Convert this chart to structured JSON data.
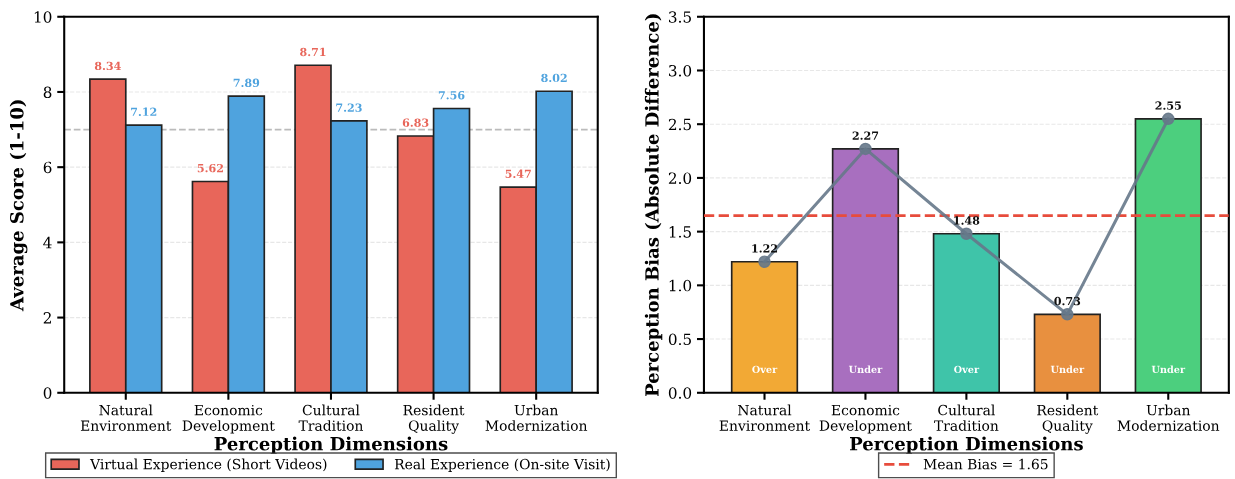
{
  "chart_data": [
    {
      "type": "bar",
      "categories": [
        "Natural\nEnvironment",
        "Economic\nDevelopment",
        "Cultural\nTradition",
        "Resident\nQuality",
        "Urban\nModernization"
      ],
      "xlabel": "Perception Dimensions",
      "ylabel": "Average Score (1-10)",
      "ylim": [
        0,
        10
      ],
      "yticks": [
        0,
        2,
        4,
        6,
        8,
        10
      ],
      "grid": "y",
      "legend": "bottom",
      "data_labels": true,
      "series": [
        {
          "name": "Virtual Experience (Short Videos)",
          "color": "#e8665a",
          "values": [
            8.34,
            5.62,
            8.71,
            6.83,
            5.47
          ]
        },
        {
          "name": "Real Experience (On-site Visit)",
          "color": "#4fa3de",
          "values": [
            7.12,
            7.89,
            7.23,
            7.56,
            8.02
          ]
        }
      ],
      "ref_lines": [
        {
          "axis": "y",
          "value": 7,
          "color": "#bbbbbb",
          "line_style": "dashed"
        }
      ]
    },
    {
      "type": "bar",
      "categories": [
        "Natural\nEnvironment",
        "Economic\nDevelopment",
        "Cultural\nTradition",
        "Resident\nQuality",
        "Urban\nModernization"
      ],
      "xlabel": "Perception Dimensions",
      "ylabel": "Perception Bias (Absolute Difference)",
      "ylim": [
        0,
        3.5
      ],
      "yticks": [
        {
          "value": 0,
          "label": "0.0"
        },
        {
          "value": 0.5,
          "label": "0.5"
        },
        {
          "value": 1,
          "label": "1.0"
        },
        {
          "value": 1.5,
          "label": "1.5"
        },
        {
          "value": 2,
          "label": "2.0"
        },
        {
          "value": 2.5,
          "label": "2.5"
        },
        {
          "value": 3,
          "label": "3.0"
        },
        {
          "value": 3.5,
          "label": "3.5"
        }
      ],
      "grid": "y",
      "legend": "bottom",
      "series": [
        {
          "type": "bar",
          "colors": [
            "#f2a935",
            "#a86fbf",
            "#3fc4a9",
            "#e8903f",
            "#4ccf7e"
          ],
          "values": [
            1.22,
            2.27,
            1.48,
            0.73,
            2.55
          ],
          "data_labels": true
        },
        {
          "type": "line",
          "color": "#66788a",
          "marker": "circle",
          "line_style": "solid",
          "values": [
            1.22,
            2.27,
            1.48,
            0.73,
            2.55
          ]
        }
      ],
      "ref_lines": [
        {
          "axis": "y",
          "value": 1.65,
          "label": "Mean Bias = 1.65",
          "color": "#e74c3c",
          "line_style": "dashed"
        }
      ],
      "annotations": [
        "Over",
        "Under",
        "Over",
        "Under",
        "Under"
      ]
    }
  ]
}
